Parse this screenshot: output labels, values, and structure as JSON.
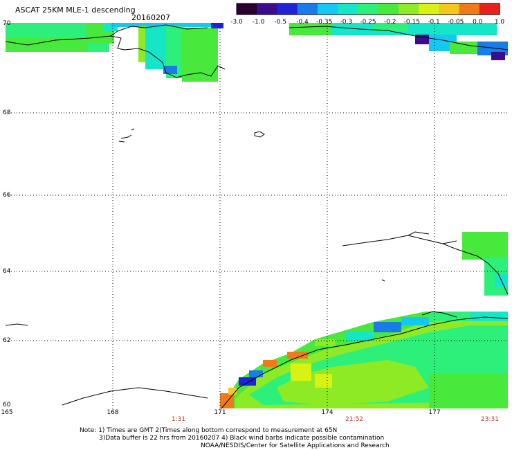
{
  "title": "ASCAT 25KM MLE-1 descending",
  "date": "20160207",
  "colorbar": {
    "labels": [
      "-3.0",
      "-1.0",
      "-0.5",
      "-0.4",
      "-0.35",
      "-0.3",
      "-0.25",
      "-0.2",
      "-0.15",
      "-0.1",
      "-0.05",
      "0.0",
      "1.0"
    ],
    "colors": [
      "#2b0030",
      "#3a0d8f",
      "#1e22d8",
      "#1a7ce6",
      "#15c8f2",
      "#15e6c8",
      "#2cf07a",
      "#48e83c",
      "#8fea26",
      "#d8f214",
      "#f2c81a",
      "#f07a18",
      "#e8221a"
    ]
  },
  "lat_labels": [
    "70",
    "68",
    "66",
    "64",
    "62",
    "60"
  ],
  "lon_labels": [
    "165",
    "168",
    "171",
    "174",
    "177"
  ],
  "time_labels": [
    "1:31",
    "21:52",
    "23:31"
  ],
  "notes": [
    "Note: 1) Times are GMT 2)Times along bottom correspond to measurement at 65N",
    "3)Data buffer is 22 hrs from 20160207 4) Black wind barbs indicate possible contamination",
    "NOAA/NESDIS/Center for Satellite Applications and Research"
  ]
}
